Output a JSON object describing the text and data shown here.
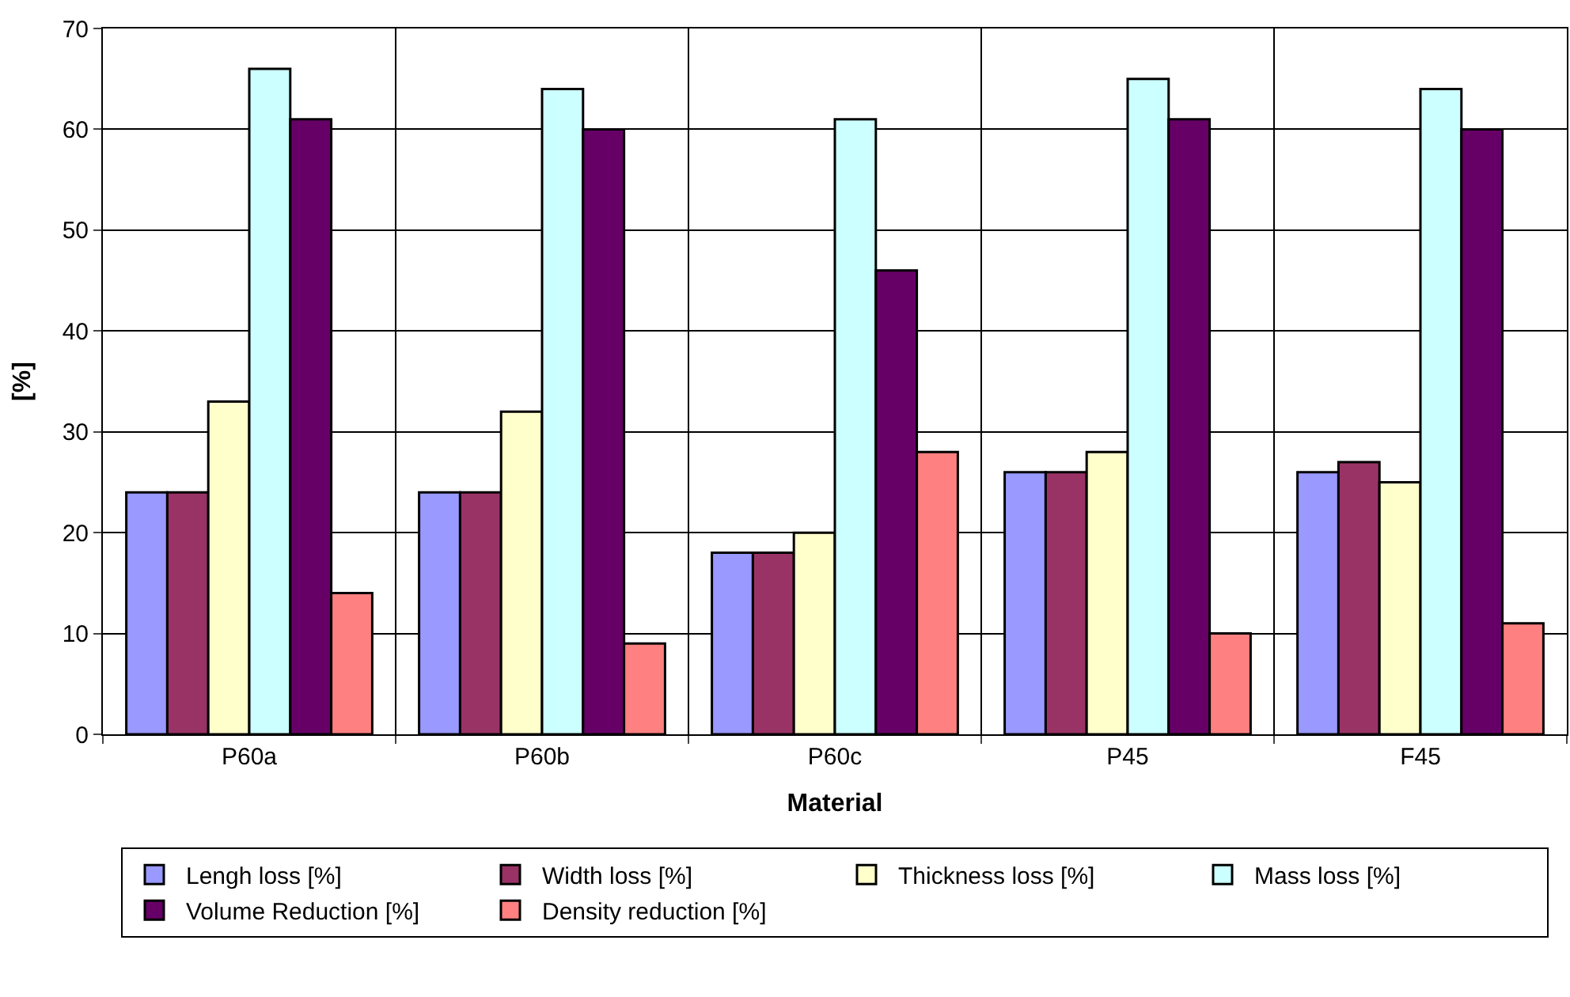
{
  "chart_data": {
    "type": "bar",
    "xlabel": "Material",
    "ylabel": "[%]",
    "categories": [
      "P60a",
      "P60b",
      "P60c",
      "P45",
      "F45"
    ],
    "series": [
      {
        "name": "Lengh loss [%]",
        "color": "#9999ff",
        "values": [
          24,
          24,
          18,
          26,
          26
        ]
      },
      {
        "name": "Width loss [%]",
        "color": "#993366",
        "values": [
          24,
          24,
          18,
          26,
          27
        ]
      },
      {
        "name": "Thickness loss [%]",
        "color": "#ffffcc",
        "values": [
          33,
          32,
          20,
          28,
          25
        ]
      },
      {
        "name": "Mass loss [%]",
        "color": "#ccffff",
        "values": [
          66,
          64,
          61,
          65,
          64
        ]
      },
      {
        "name": "Volume Reduction [%]",
        "color": "#660066",
        "values": [
          61,
          60,
          46,
          61,
          60
        ]
      },
      {
        "name": "Density reduction [%]",
        "color": "#ff8080",
        "values": [
          14,
          9,
          28,
          10,
          11
        ]
      }
    ],
    "ylim": [
      0,
      70
    ],
    "yticks": [
      0,
      10,
      20,
      30,
      40,
      50,
      60,
      70
    ],
    "grid": true,
    "legend": "bottom"
  }
}
